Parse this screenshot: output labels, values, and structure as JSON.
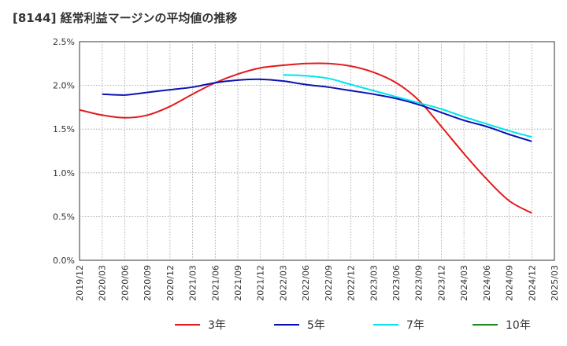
{
  "chart_data": {
    "type": "line",
    "title": "[8144]  経常利益マージンの平均値の推移",
    "xlabel": "",
    "ylabel": "",
    "x": [
      "2019/12",
      "2020/03",
      "2020/06",
      "2020/09",
      "2020/12",
      "2021/03",
      "2021/06",
      "2021/09",
      "2021/12",
      "2022/03",
      "2022/06",
      "2022/09",
      "2022/12",
      "2023/03",
      "2023/06",
      "2023/09",
      "2023/12",
      "2024/03",
      "2024/06",
      "2024/09",
      "2024/12",
      "2025/03"
    ],
    "yticks": [
      "0.0%",
      "0.5%",
      "1.0%",
      "1.5%",
      "2.0%",
      "2.5%"
    ],
    "ylim": [
      0,
      2.5
    ],
    "grid": true,
    "legend_position": "bottom",
    "series": [
      {
        "name": "3年",
        "color": "#e41a1c",
        "values": [
          1.72,
          1.66,
          1.63,
          1.66,
          1.76,
          1.9,
          2.03,
          2.13,
          2.2,
          2.23,
          2.25,
          2.25,
          2.22,
          2.15,
          2.03,
          1.83,
          1.53,
          1.22,
          0.93,
          0.68,
          0.54,
          null
        ]
      },
      {
        "name": "5年",
        "color": "#0b12b4",
        "values": [
          null,
          1.9,
          1.89,
          1.92,
          1.95,
          1.98,
          2.03,
          2.06,
          2.07,
          2.05,
          2.01,
          1.98,
          1.94,
          1.9,
          1.85,
          1.78,
          1.69,
          1.6,
          1.53,
          1.44,
          1.36,
          null
        ]
      },
      {
        "name": "7年",
        "color": "#00e5ee",
        "values": [
          null,
          null,
          null,
          null,
          null,
          null,
          null,
          null,
          null,
          2.12,
          2.11,
          2.08,
          2.01,
          1.94,
          1.87,
          1.8,
          1.73,
          1.64,
          1.56,
          1.48,
          1.41,
          null
        ]
      },
      {
        "name": "10年",
        "color": "#1e8c1e",
        "values": [
          null,
          null,
          null,
          null,
          null,
          null,
          null,
          null,
          null,
          null,
          null,
          null,
          null,
          null,
          null,
          null,
          null,
          null,
          null,
          null,
          null,
          null
        ]
      }
    ]
  }
}
